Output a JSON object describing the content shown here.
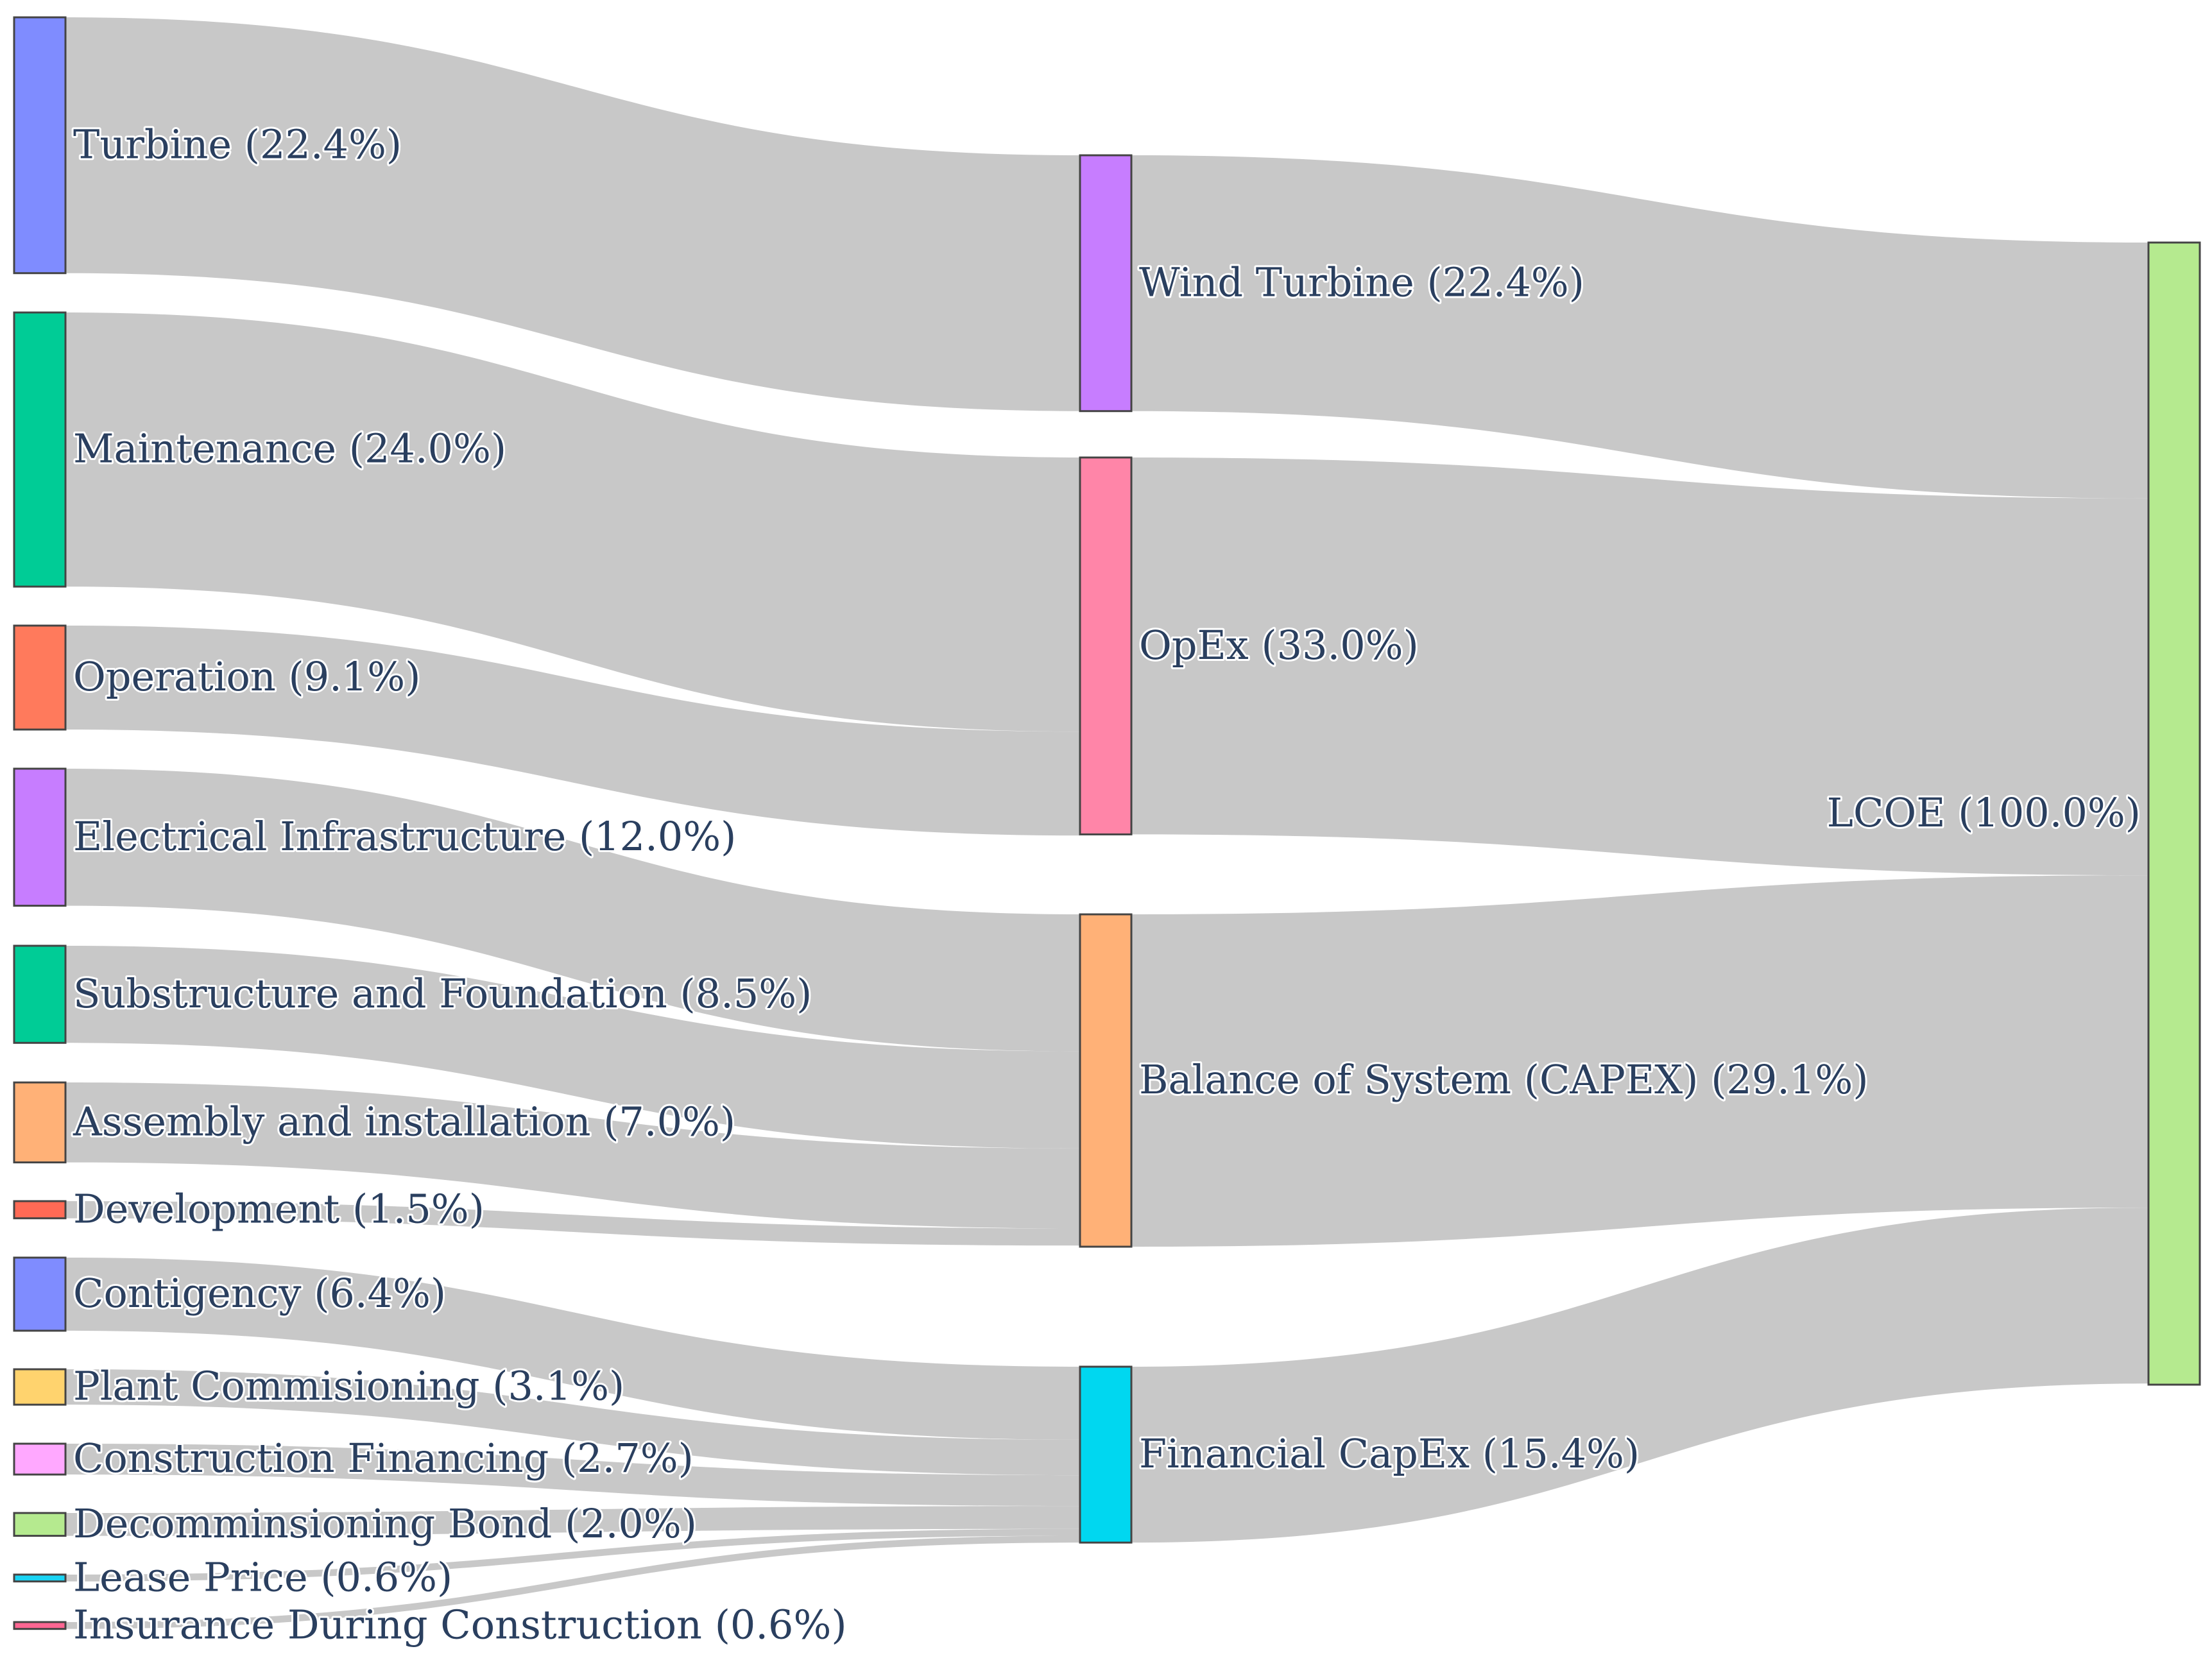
{
  "chart_data": {
    "type": "sankey",
    "title": "",
    "unit": "% of LCOE",
    "link_color": "#c8c8c8",
    "nodes": [
      {
        "id": "turbine",
        "label": "Turbine (22.4%)",
        "value": 22.4,
        "color": "#7f8cff"
      },
      {
        "id": "maintenance",
        "label": "Maintenance (24.0%)",
        "value": 24.0,
        "color": "#00cc96"
      },
      {
        "id": "operation",
        "label": "Operation (9.1%)",
        "value": 9.1,
        "color": "#ff7a5c"
      },
      {
        "id": "electrical",
        "label": "Electrical Infrastructure (12.0%)",
        "value": 12.0,
        "color": "#c77dff"
      },
      {
        "id": "substructure",
        "label": "Substructure and Foundation (8.5%)",
        "value": 8.5,
        "color": "#00cc96"
      },
      {
        "id": "assembly",
        "label": "Assembly and installation (7.0%)",
        "value": 7.0,
        "color": "#ffb177"
      },
      {
        "id": "development",
        "label": "Development (1.5%)",
        "value": 1.5,
        "color": "#ff6a55"
      },
      {
        "id": "contingency",
        "label": "Contigency (6.4%)",
        "value": 6.4,
        "color": "#7f8cff"
      },
      {
        "id": "commissioning",
        "label": "Plant Commisioning (3.1%)",
        "value": 3.1,
        "color": "#ffd36e"
      },
      {
        "id": "construction_financing",
        "label": "Construction Financing (2.7%)",
        "value": 2.7,
        "color": "#ffa8ff"
      },
      {
        "id": "decommissioning",
        "label": "Decomminsioning Bond (2.0%)",
        "value": 2.0,
        "color": "#b5ea8f"
      },
      {
        "id": "lease",
        "label": "Lease Price (0.6%)",
        "value": 0.6,
        "color": "#19d3f3"
      },
      {
        "id": "insurance",
        "label": "Insurance During Construction (0.6%)",
        "value": 0.6,
        "color": "#ff6692"
      },
      {
        "id": "wind_turbine",
        "label": "Wind Turbine (22.4%)",
        "value": 22.4,
        "color": "#c77dff"
      },
      {
        "id": "opex",
        "label": "OpEx (33.0%)",
        "value": 33.0,
        "color": "#ff85a8"
      },
      {
        "id": "bos",
        "label": "Balance of System (CAPEX) (29.1%)",
        "value": 29.1,
        "color": "#ffb177"
      },
      {
        "id": "financial",
        "label": "Financial CapEx (15.4%)",
        "value": 15.4,
        "color": "#00d7f0"
      },
      {
        "id": "lcoe",
        "label": "LCOE (100.0%)",
        "value": 100.0,
        "color": "#b5ea8f"
      }
    ],
    "links": [
      {
        "source": "turbine",
        "target": "wind_turbine",
        "value": 22.4
      },
      {
        "source": "maintenance",
        "target": "opex",
        "value": 24.0
      },
      {
        "source": "operation",
        "target": "opex",
        "value": 9.1
      },
      {
        "source": "electrical",
        "target": "bos",
        "value": 12.0
      },
      {
        "source": "substructure",
        "target": "bos",
        "value": 8.5
      },
      {
        "source": "assembly",
        "target": "bos",
        "value": 7.0
      },
      {
        "source": "development",
        "target": "bos",
        "value": 1.5
      },
      {
        "source": "contingency",
        "target": "financial",
        "value": 6.4
      },
      {
        "source": "commissioning",
        "target": "financial",
        "value": 3.1
      },
      {
        "source": "construction_financing",
        "target": "financial",
        "value": 2.7
      },
      {
        "source": "decommissioning",
        "target": "financial",
        "value": 2.0
      },
      {
        "source": "lease",
        "target": "financial",
        "value": 0.6
      },
      {
        "source": "insurance",
        "target": "financial",
        "value": 0.6
      },
      {
        "source": "wind_turbine",
        "target": "lcoe",
        "value": 22.4
      },
      {
        "source": "opex",
        "target": "lcoe",
        "value": 33.0
      },
      {
        "source": "bos",
        "target": "lcoe",
        "value": 29.1
      },
      {
        "source": "financial",
        "target": "lcoe",
        "value": 15.4
      }
    ]
  }
}
